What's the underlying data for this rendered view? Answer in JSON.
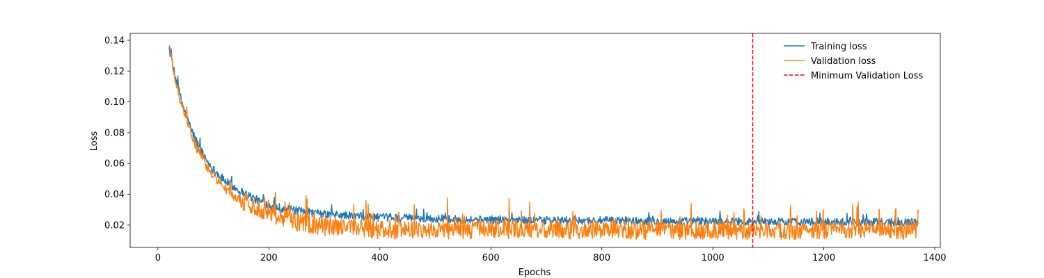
{
  "chart_data": {
    "type": "line",
    "title": "",
    "xlabel": "Epochs",
    "ylabel": "Loss",
    "xlim": [
      -50,
      1410
    ],
    "ylim": [
      0.0055,
      0.1445
    ],
    "x_ticks": [
      0,
      200,
      400,
      600,
      800,
      1000,
      1200,
      1400
    ],
    "y_ticks": [
      0.02,
      0.04,
      0.06,
      0.08,
      0.1,
      0.12,
      0.14
    ],
    "grid": false,
    "legend_position": "top-right",
    "series": [
      {
        "name": "Training loss",
        "color": "#1f77b4",
        "x": [
          20,
          30,
          40,
          50,
          60,
          70,
          80,
          90,
          100,
          120,
          140,
          160,
          180,
          200,
          250,
          300,
          350,
          400,
          500,
          600,
          700,
          800,
          900,
          1000,
          1100,
          1200,
          1300,
          1370
        ],
        "values": [
          0.135,
          0.118,
          0.104,
          0.092,
          0.082,
          0.074,
          0.067,
          0.061,
          0.056,
          0.049,
          0.044,
          0.04,
          0.036,
          0.033,
          0.029,
          0.027,
          0.026,
          0.025,
          0.024,
          0.0235,
          0.023,
          0.023,
          0.0225,
          0.0225,
          0.0222,
          0.0222,
          0.022,
          0.022
        ],
        "noise": 0.0028
      },
      {
        "name": "Validation loss",
        "color": "#ff7f0e",
        "x": [
          20,
          30,
          40,
          50,
          60,
          70,
          80,
          90,
          100,
          120,
          140,
          160,
          180,
          200,
          250,
          300,
          350,
          400,
          500,
          600,
          700,
          800,
          900,
          1000,
          1100,
          1200,
          1300,
          1370
        ],
        "values": [
          0.138,
          0.116,
          0.101,
          0.089,
          0.079,
          0.07,
          0.063,
          0.057,
          0.052,
          0.044,
          0.038,
          0.034,
          0.031,
          0.028,
          0.022,
          0.019,
          0.018,
          0.017,
          0.017,
          0.017,
          0.0168,
          0.0168,
          0.0165,
          0.0165,
          0.0165,
          0.0165,
          0.0165,
          0.0165
        ],
        "noise": 0.006,
        "floor": 0.0098
      }
    ],
    "vline": {
      "name": "Minimum Validation Loss",
      "x": 1072,
      "color": "#ff0000",
      "style": "dashed"
    }
  }
}
